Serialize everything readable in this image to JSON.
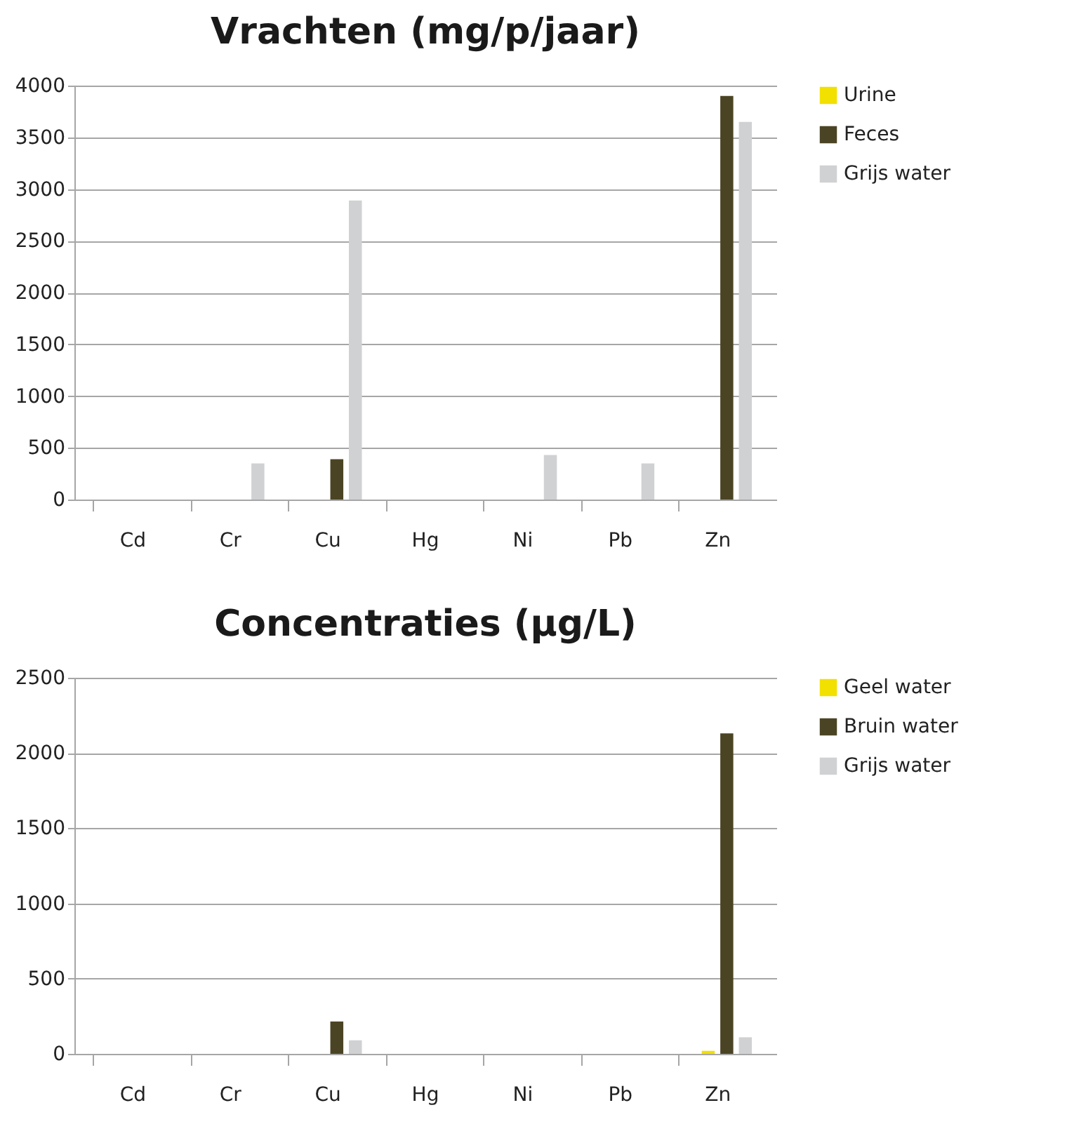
{
  "chart_data": [
    {
      "type": "bar",
      "title": "Vrachten (mg/p/jaar)",
      "categories": [
        "Cd",
        "Cr",
        "Cu",
        "Hg",
        "Ni",
        "Pb",
        "Zn"
      ],
      "ylim": [
        0,
        4000
      ],
      "yticks": [
        0,
        500,
        1000,
        1500,
        2000,
        2500,
        3000,
        3500,
        4000
      ],
      "grid": "y",
      "legend": "right",
      "series": [
        {
          "name": "Urine",
          "color": "#f2e000",
          "values": [
            0,
            0,
            0,
            0,
            0,
            0,
            0
          ]
        },
        {
          "name": "Feces",
          "color": "#4b4424",
          "values": [
            0,
            0,
            390,
            0,
            0,
            0,
            3900
          ]
        },
        {
          "name": "Grijs water",
          "color": "#d0d1d3",
          "values": [
            0,
            350,
            2890,
            0,
            430,
            350,
            3650
          ]
        }
      ]
    },
    {
      "type": "bar",
      "title": "Concentraties (µg/L)",
      "categories": [
        "Cd",
        "Cr",
        "Cu",
        "Hg",
        "Ni",
        "Pb",
        "Zn"
      ],
      "ylim": [
        0,
        2500
      ],
      "yticks": [
        0,
        500,
        1000,
        1500,
        2000,
        2500
      ],
      "grid": "y",
      "legend": "right",
      "series": [
        {
          "name": "Geel water",
          "color": "#f2e000",
          "values": [
            0,
            0,
            0,
            0,
            0,
            0,
            20
          ]
        },
        {
          "name": "Bruin water",
          "color": "#4b4424",
          "values": [
            0,
            0,
            215,
            0,
            0,
            0,
            2130
          ]
        },
        {
          "name": "Grijs water",
          "color": "#d0d1d3",
          "values": [
            0,
            0,
            90,
            0,
            0,
            0,
            110
          ]
        }
      ]
    }
  ]
}
